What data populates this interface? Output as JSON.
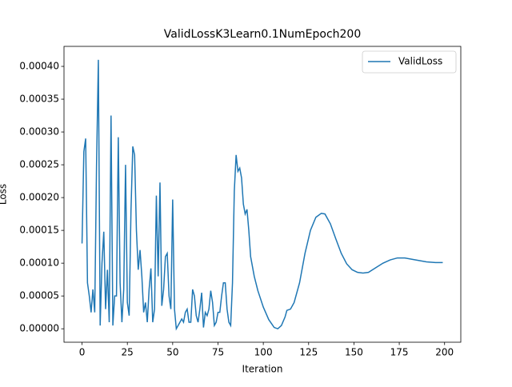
{
  "chart_data": {
    "type": "line",
    "title": "ValidLossK3Learn0.1NumEpoch200",
    "x_label": "Iteration",
    "y_label": "Loss",
    "x": [
      0,
      1,
      2,
      3,
      4,
      5,
      6,
      7,
      8,
      9,
      10,
      11,
      12,
      13,
      14,
      15,
      16,
      17,
      18,
      19,
      20,
      21,
      22,
      23,
      24,
      25,
      26,
      27,
      28,
      29,
      30,
      31,
      32,
      33,
      34,
      35,
      36,
      37,
      38,
      39,
      40,
      41,
      42,
      43,
      44,
      45,
      46,
      47,
      48,
      49,
      50,
      51,
      52,
      53,
      54,
      55,
      56,
      57,
      58,
      59,
      60,
      61,
      62,
      63,
      64,
      65,
      66,
      67,
      68,
      69,
      70,
      71,
      72,
      73,
      74,
      75,
      76,
      77,
      78,
      79,
      80,
      81,
      82,
      83,
      84,
      85,
      86,
      87,
      88,
      89,
      90,
      91,
      92,
      93,
      95,
      97,
      100,
      103,
      106,
      108,
      110,
      112,
      113,
      115,
      117,
      120,
      123,
      126,
      129,
      132,
      134,
      137,
      140,
      143,
      146,
      149,
      152,
      155,
      158,
      162,
      166,
      170,
      174,
      178,
      182,
      186,
      190,
      195,
      199
    ],
    "series": [
      {
        "name": "ValidLoss",
        "color": "#1f77b4",
        "values": [
          0.00013,
          0.00027,
          0.00029,
          7e-05,
          5e-05,
          2.5e-05,
          6e-05,
          2.5e-05,
          0.00025,
          0.00041,
          5e-06,
          0.0001,
          0.000148,
          3e-05,
          9e-05,
          1e-05,
          0.000325,
          5e-06,
          5e-05,
          5e-05,
          0.000292,
          7e-05,
          1e-05,
          6e-05,
          0.00025,
          4e-05,
          2e-05,
          0.00018,
          0.000278,
          0.000265,
          0.00015,
          9e-05,
          0.00012,
          8e-05,
          2.5e-05,
          4e-05,
          1e-05,
          6e-05,
          9.2e-05,
          1e-05,
          3e-05,
          0.000203,
          8e-05,
          0.000223,
          3.5e-05,
          6e-05,
          0.00011,
          0.000115,
          5e-05,
          3e-05,
          0.000197,
          3e-05,
          0.0,
          5e-06,
          1e-05,
          1.5e-05,
          1e-05,
          2.5e-05,
          3e-05,
          1e-05,
          1e-05,
          6e-05,
          5e-05,
          2e-05,
          1e-05,
          3e-05,
          5.5e-05,
          2e-06,
          2.5e-05,
          2e-05,
          3e-05,
          5.8e-05,
          4e-05,
          5e-06,
          1e-05,
          2.5e-05,
          2.5e-05,
          5e-05,
          7e-05,
          7e-05,
          3e-05,
          1e-05,
          5e-06,
          7e-05,
          0.00021,
          0.000265,
          0.00024,
          0.000245,
          0.00023,
          0.00019,
          0.000175,
          0.000182,
          0.00015,
          0.00011,
          8e-05,
          5.8e-05,
          3.3e-05,
          1.4e-05,
          2e-06,
          0.0,
          5e-06,
          1.8e-05,
          2.8e-05,
          3e-05,
          4e-05,
          7e-05,
          0.000115,
          0.00015,
          0.00017,
          0.000176,
          0.000175,
          0.00016,
          0.000137,
          0.000115,
          9.9e-05,
          9e-05,
          8.6e-05,
          8.5e-05,
          8.6e-05,
          9.3e-05,
          0.0001,
          0.000105,
          0.000108,
          0.000108,
          0.000106,
          0.000104,
          0.000102,
          0.000101,
          0.000101
        ]
      }
    ],
    "xlim": [
      -9.95,
      208.95
    ],
    "xticks": [
      0,
      25,
      50,
      75,
      100,
      125,
      150,
      175,
      200
    ],
    "ylim": [
      -2.05e-05,
      0.0004305
    ],
    "yticks": [
      {
        "value": 0,
        "label": "0.00000"
      },
      {
        "value": 5e-05,
        "label": "0.00005"
      },
      {
        "value": 0.0001,
        "label": "0.00010"
      },
      {
        "value": 0.00015,
        "label": "0.00015"
      },
      {
        "value": 0.0002,
        "label": "0.00020"
      },
      {
        "value": 0.00025,
        "label": "0.00025"
      },
      {
        "value": 0.0003,
        "label": "0.00030"
      },
      {
        "value": 0.00035,
        "label": "0.00035"
      },
      {
        "value": 0.0004,
        "label": "0.00040"
      }
    ],
    "legend": "upper right"
  }
}
